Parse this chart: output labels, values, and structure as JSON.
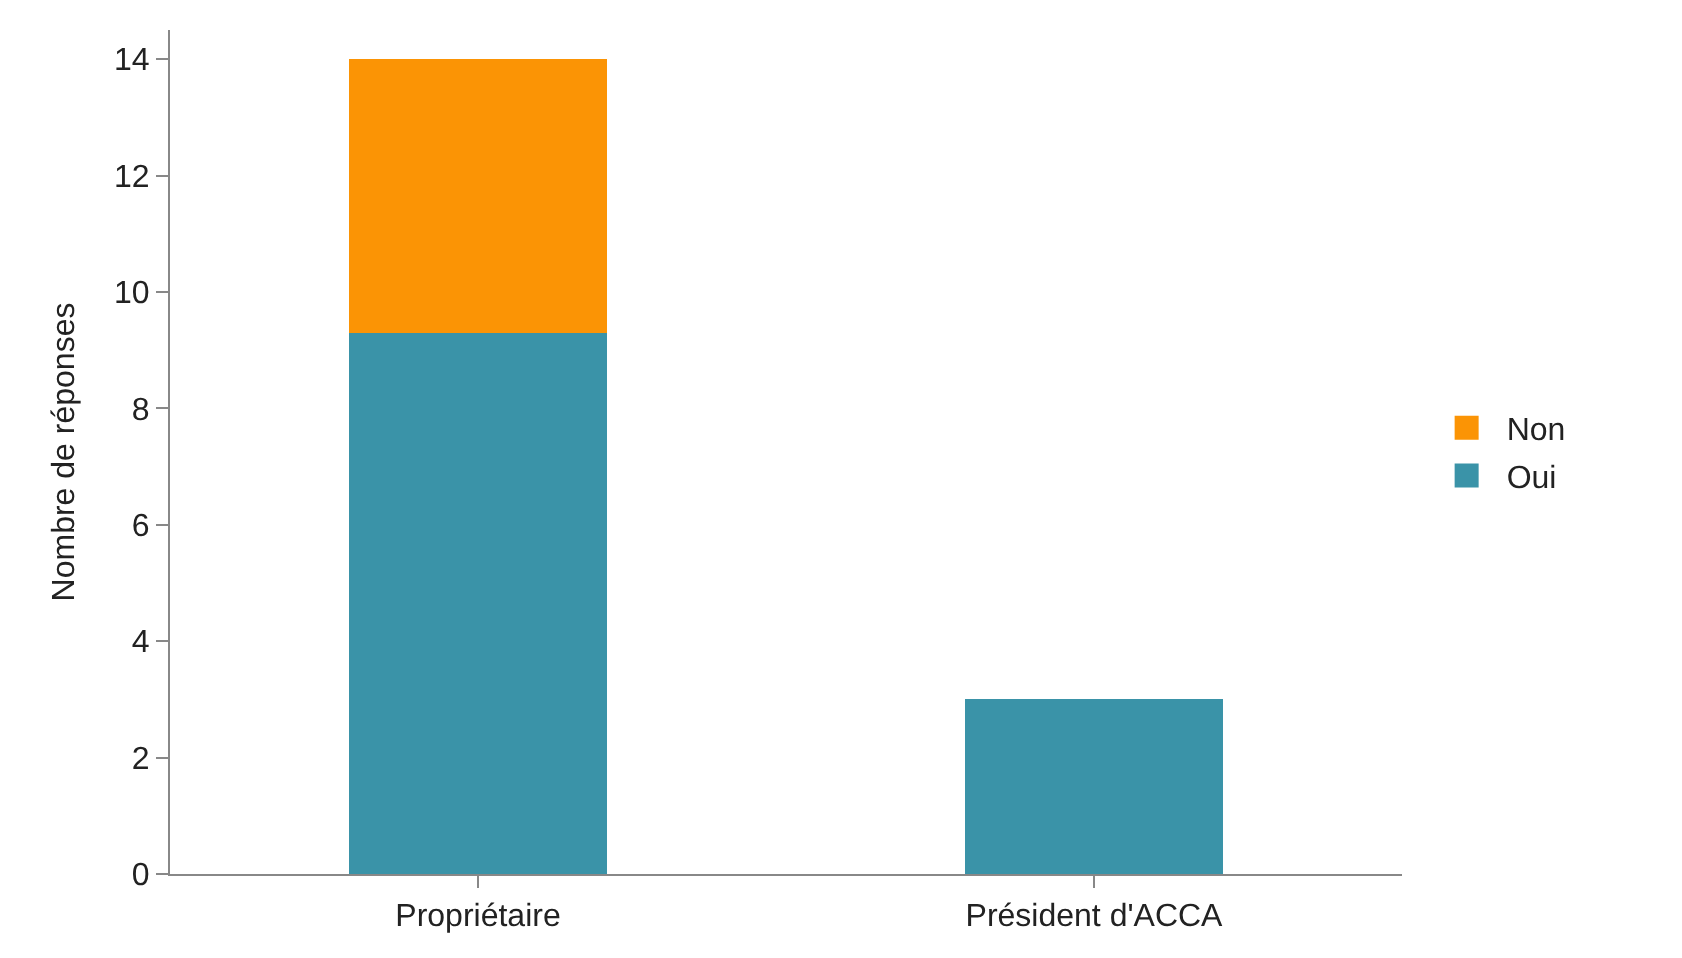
{
  "chart_data": {
    "type": "bar",
    "stacked": true,
    "ylabel": "Nombre de réponses",
    "categories": [
      "Propriétaire",
      "Président d'ACCA"
    ],
    "series": [
      {
        "name": "Oui",
        "color": "#3a93a8",
        "values": [
          9.3,
          3
        ]
      },
      {
        "name": "Non",
        "color": "#fb9405",
        "values": [
          4.7,
          0
        ]
      }
    ],
    "ylim": [
      0,
      14.5
    ],
    "yticks": [
      0,
      2,
      4,
      6,
      8,
      10,
      12,
      14
    ],
    "legend": "right"
  }
}
